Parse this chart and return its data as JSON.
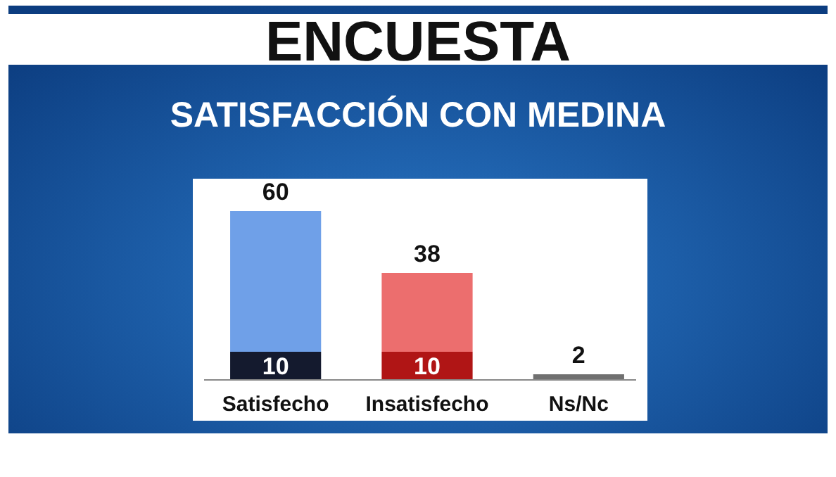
{
  "chart_data": {
    "type": "bar",
    "title": "ENCUESTA",
    "subtitle": "SATISFACCIÓN CON MEDINA",
    "stacked": true,
    "categories": [
      "Satisfecho",
      "Insatisfecho",
      "Ns/Nc"
    ],
    "series": [
      {
        "colors": [
          "#141a2e",
          "#b01515",
          null
        ],
        "values": [
          10,
          10,
          null
        ],
        "value_labels": [
          "10",
          "10",
          null
        ]
      },
      {
        "colors": [
          "#6fa0e8",
          "#ec6e6e",
          "#707070"
        ],
        "values": [
          50,
          28,
          2
        ]
      }
    ],
    "totals": [
      "60",
      "38",
      "2"
    ]
  }
}
